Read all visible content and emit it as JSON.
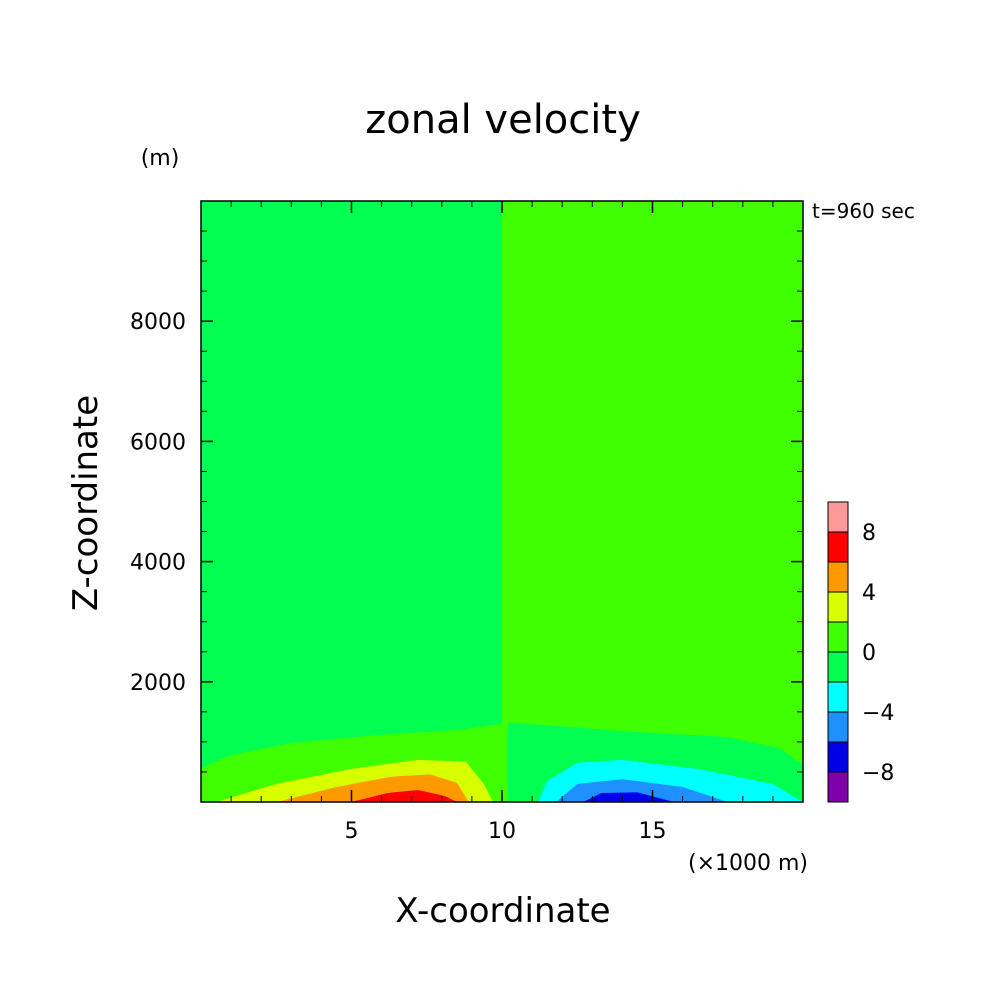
{
  "chart_data": {
    "type": "heatmap",
    "title": "zonal velocity",
    "time_label": "t=960 sec",
    "xlabel": "X-coordinate",
    "ylabel": "Z-coordinate",
    "x_unit": "(×1000 m)",
    "y_unit": "(m)",
    "xlim": [
      0,
      20
    ],
    "ylim": [
      0,
      10000
    ],
    "x_ticks": [
      5,
      10,
      15
    ],
    "y_ticks": [
      2000,
      4000,
      6000,
      8000
    ],
    "x_tick_labels": [
      "5",
      "10",
      "15"
    ],
    "y_tick_labels": [
      "2000",
      "4000",
      "6000",
      "8000"
    ],
    "grid": false,
    "colorbar": {
      "placement": "right",
      "levels": [
        -10,
        -8,
        -6,
        -4,
        -2,
        0,
        2,
        4,
        6,
        8,
        10
      ],
      "colors": [
        "#7f00a8",
        "#0000e8",
        "#1e90ff",
        "#00ffff",
        "#00ff50",
        "#40ff00",
        "#d8ff00",
        "#ff9900",
        "#ff0000",
        "#ff9999"
      ],
      "tick_values": [
        -8,
        -4,
        0,
        4,
        8
      ],
      "tick_labels": [
        "−8",
        "−4",
        "0",
        "4",
        "8"
      ]
    },
    "contour_regions": [
      {
        "level_index": 4,
        "polygon": [
          [
            0,
            0
          ],
          [
            10,
            0
          ],
          [
            10,
            10000
          ],
          [
            0,
            10000
          ]
        ]
      },
      {
        "level_index": 5,
        "polygon": [
          [
            10,
            0
          ],
          [
            20,
            0
          ],
          [
            20,
            10000
          ],
          [
            10,
            10000
          ]
        ]
      },
      {
        "level_index": 5,
        "polygon": [
          [
            0,
            0
          ],
          [
            0,
            560
          ],
          [
            1,
            780
          ],
          [
            3,
            980
          ],
          [
            6,
            1120
          ],
          [
            8.6,
            1200
          ],
          [
            10.2,
            1320
          ],
          [
            10.2,
            0
          ]
        ]
      },
      {
        "level_index": 6,
        "polygon": [
          [
            0.5,
            0
          ],
          [
            2.5,
            300
          ],
          [
            5,
            550
          ],
          [
            7.2,
            700
          ],
          [
            8.8,
            670
          ],
          [
            9.4,
            300
          ],
          [
            9.7,
            0
          ]
        ]
      },
      {
        "level_index": 7,
        "polygon": [
          [
            2.5,
            0
          ],
          [
            4.5,
            250
          ],
          [
            6.3,
            420
          ],
          [
            7.6,
            460
          ],
          [
            8.5,
            320
          ],
          [
            8.9,
            0
          ]
        ]
      },
      {
        "level_index": 8,
        "polygon": [
          [
            5,
            0
          ],
          [
            6.2,
            150
          ],
          [
            7.2,
            200
          ],
          [
            8.1,
            100
          ],
          [
            8.5,
            0
          ]
        ]
      },
      {
        "level_index": 4,
        "polygon": [
          [
            10.2,
            0
          ],
          [
            10.2,
            1320
          ],
          [
            11.5,
            1280
          ],
          [
            14,
            1180
          ],
          [
            17.5,
            1080
          ],
          [
            19.2,
            900
          ],
          [
            20,
            620
          ],
          [
            20,
            0
          ]
        ]
      },
      {
        "level_index": 3,
        "polygon": [
          [
            11.2,
            0
          ],
          [
            11.5,
            350
          ],
          [
            12.5,
            650
          ],
          [
            14,
            700
          ],
          [
            16.5,
            550
          ],
          [
            19,
            300
          ],
          [
            20,
            0
          ]
        ]
      },
      {
        "level_index": 2,
        "polygon": [
          [
            11.8,
            0
          ],
          [
            12.5,
            300
          ],
          [
            14,
            380
          ],
          [
            16,
            250
          ],
          [
            17.5,
            0
          ]
        ]
      },
      {
        "level_index": 1,
        "polygon": [
          [
            12.7,
            0
          ],
          [
            13.3,
            150
          ],
          [
            14.5,
            160
          ],
          [
            15.7,
            0
          ]
        ]
      }
    ]
  }
}
